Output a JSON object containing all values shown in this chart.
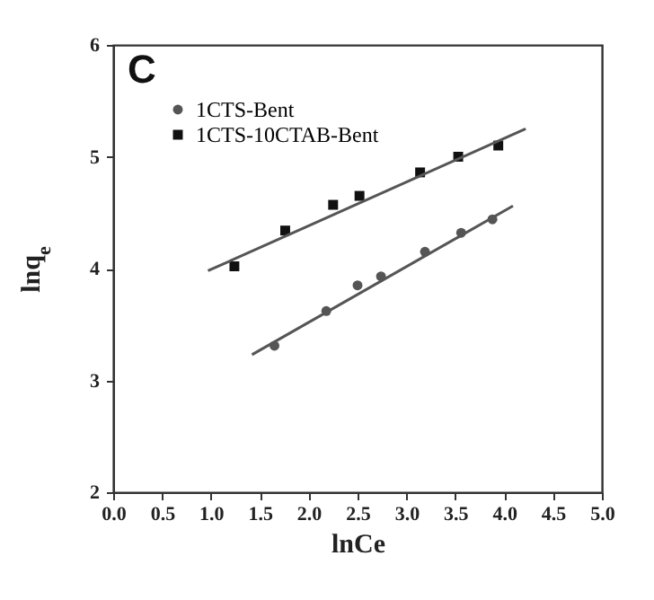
{
  "chart_data": {
    "type": "scatter",
    "xlabel": "lnCe",
    "ylabel": "lnq$_{e}$",
    "annotations": [
      "C"
    ],
    "series": [
      {
        "name": "1CTS-Bent",
        "color": "#555555",
        "marker": "circle",
        "x": [
          1.65,
          2.18,
          2.5,
          2.74,
          3.19,
          3.56,
          3.88
        ],
        "values": [
          3.31,
          3.62,
          3.85,
          3.93,
          4.15,
          4.32,
          4.44
        ]
      },
      {
        "name": "1CTS-10CTAB-Bent",
        "color": "#111111",
        "marker": "square",
        "x": [
          1.24,
          1.76,
          2.25,
          2.52,
          3.14,
          3.53,
          3.94
        ],
        "values": [
          4.02,
          4.34,
          4.57,
          4.65,
          4.86,
          5.0,
          5.1
        ]
      },
      {
        "type": "line",
        "color": "#555555",
        "x": [
          1.42,
          4.09
        ],
        "values": [
          3.23,
          4.56
        ]
      },
      {
        "type": "line",
        "color": "#555555",
        "x": [
          0.97,
          4.22
        ],
        "values": [
          3.98,
          5.25
        ]
      }
    ],
    "xlim": [
      0,
      5
    ],
    "xticks": [
      {
        "value": 0,
        "label": "0.0"
      },
      {
        "value": 0.5,
        "label": "0.5"
      },
      {
        "value": 1,
        "label": "1.0"
      },
      {
        "value": 1.5,
        "label": "1.5"
      },
      {
        "value": 2,
        "label": "2.0"
      },
      {
        "value": 2.5,
        "label": "2.5"
      },
      {
        "value": 3,
        "label": "3.0"
      },
      {
        "value": 3.5,
        "label": "3.5"
      },
      {
        "value": 4,
        "label": "4.0"
      },
      {
        "value": 4.5,
        "label": "4.5"
      },
      {
        "value": 5,
        "label": "5.0"
      }
    ],
    "ylim": [
      2,
      6
    ],
    "yticks": [
      2,
      3,
      4,
      5,
      6
    ],
    "legend": "top left",
    "grid": false
  }
}
